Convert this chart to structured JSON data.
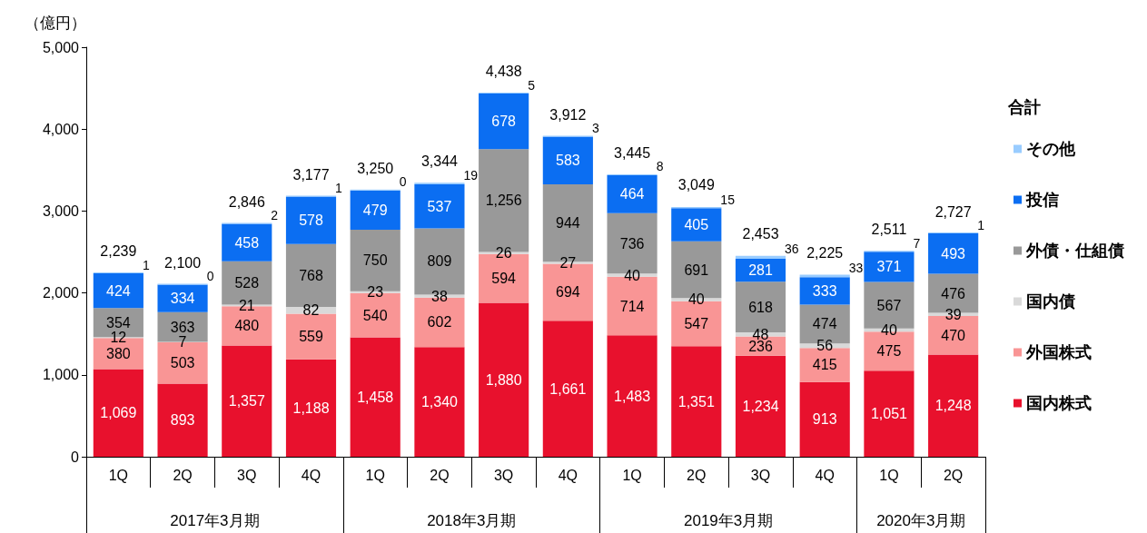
{
  "chart_data": {
    "type": "bar",
    "stacked": true,
    "ylabel": "（億円）",
    "legend_title": "合計",
    "legend": "right",
    "categories": [
      "1Q",
      "2Q",
      "3Q",
      "4Q",
      "1Q",
      "2Q",
      "3Q",
      "4Q",
      "1Q",
      "2Q",
      "3Q",
      "4Q",
      "1Q",
      "2Q"
    ],
    "annotations": [
      "2017年3月期",
      "2018年3月期",
      "2019年3月期",
      "2020年3月期"
    ],
    "ylim": [
      0,
      5000
    ],
    "yticks": [
      0,
      {
        "value": 1000,
        "label": "1,000"
      },
      {
        "value": 2000,
        "label": "2,000"
      },
      {
        "value": 3000,
        "label": "3,000"
      },
      {
        "value": 4000,
        "label": "4,000"
      },
      {
        "value": 5000,
        "label": "5,000"
      }
    ],
    "series": [
      {
        "name": "国内株式",
        "color": "#e8112d",
        "values": [
          1069,
          893,
          1357,
          1188,
          1458,
          1340,
          1880,
          1661,
          1483,
          1351,
          1234,
          913,
          1051,
          1248
        ],
        "value_labels": [
          "1,069",
          "893",
          "1,357",
          "1,188",
          "1,458",
          "1,340",
          "1,880",
          "1,661",
          "1,483",
          "1,351",
          "1,234",
          "913",
          "1,051",
          "1,248"
        ]
      },
      {
        "name": "外国株式",
        "color": "#f99595",
        "values": [
          380,
          503,
          480,
          559,
          540,
          602,
          594,
          694,
          714,
          547,
          236,
          415,
          475,
          470
        ],
        "value_labels": [
          "380",
          "503",
          "480",
          "559",
          "540",
          "602",
          "594",
          "694",
          "714",
          "547",
          "236",
          "415",
          "475",
          "470"
        ]
      },
      {
        "name": "国内債",
        "color": "#d9d9d9",
        "values": [
          12,
          7,
          21,
          82,
          23,
          38,
          26,
          27,
          40,
          40,
          48,
          56,
          40,
          39
        ],
        "value_labels": [
          "12",
          "7",
          "21",
          "82",
          "23",
          "38",
          "26",
          "27",
          "40",
          "40",
          "48",
          "56",
          "40",
          "39"
        ]
      },
      {
        "name": "外債・仕組債",
        "color": "#999999",
        "values": [
          354,
          363,
          528,
          768,
          750,
          809,
          1256,
          944,
          736,
          691,
          618,
          474,
          567,
          476
        ],
        "value_labels": [
          "354",
          "363",
          "528",
          "768",
          "750",
          "809",
          "1,256",
          "944",
          "736",
          "691",
          "618",
          "474",
          "567",
          "476"
        ]
      },
      {
        "name": "投信",
        "color": "#0b6ef2",
        "values": [
          424,
          334,
          458,
          578,
          479,
          537,
          678,
          583,
          464,
          405,
          281,
          333,
          371,
          493
        ],
        "value_labels": [
          "424",
          "334",
          "458",
          "578",
          "479",
          "537",
          "678",
          "583",
          "464",
          "405",
          "281",
          "333",
          "371",
          "493"
        ]
      },
      {
        "name": "その他",
        "color": "#99ccff",
        "values": [
          1,
          0,
          2,
          1,
          0,
          19,
          5,
          3,
          8,
          15,
          36,
          33,
          7,
          1
        ],
        "value_labels": [
          "1",
          "0",
          "2",
          "1",
          "0",
          "19",
          "5",
          "3",
          "8",
          "15",
          "36",
          "33",
          "7",
          "1"
        ]
      }
    ],
    "totals": [
      "2,239",
      "2,100",
      "2,846",
      "3,177",
      "3,250",
      "3,344",
      "4,438",
      "3,912",
      "3,445",
      "3,049",
      "2,453",
      "2,225",
      "2,511",
      "2,727"
    ]
  }
}
